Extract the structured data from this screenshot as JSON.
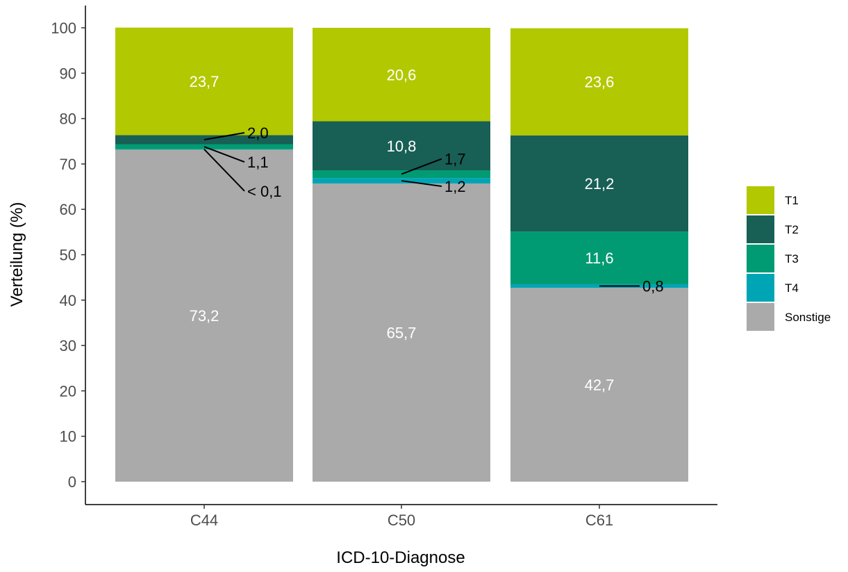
{
  "chart_data": {
    "type": "bar",
    "stacked": true,
    "xlabel": "ICD-10-Diagnose",
    "ylabel": "Verteilung (%)",
    "ylim": [
      0,
      100
    ],
    "yticks": [
      "0",
      "10",
      "20",
      "30",
      "40",
      "50",
      "60",
      "70",
      "80",
      "90",
      "100"
    ],
    "categories": [
      "C44",
      "C50",
      "C61"
    ],
    "legend_position": "right",
    "series": [
      {
        "name": "Sonstige",
        "color": "#aaaaaa",
        "values": [
          73.2,
          65.7,
          42.7
        ],
        "labels": [
          "73,2",
          "65,7",
          "42,7"
        ]
      },
      {
        "name": "T4",
        "color": "#00a5b5",
        "values": [
          0.05,
          1.2,
          0.8
        ],
        "labels": [
          "< 0,1",
          "1,2",
          "0,8"
        ]
      },
      {
        "name": "T3",
        "color": "#009b72",
        "values": [
          1.1,
          1.7,
          11.6
        ],
        "labels": [
          "1,1",
          "1,7",
          "11,6"
        ]
      },
      {
        "name": "T2",
        "color": "#185f55",
        "values": [
          2.0,
          10.8,
          21.2
        ],
        "labels": [
          "2,0",
          "10,8",
          "21,2"
        ]
      },
      {
        "name": "T1",
        "color": "#b2c800",
        "values": [
          23.7,
          20.6,
          23.6
        ],
        "labels": [
          "23,7",
          "20,6",
          "23,6"
        ]
      }
    ],
    "legend_order": [
      "T1",
      "T2",
      "T3",
      "T4",
      "Sonstige"
    ]
  }
}
